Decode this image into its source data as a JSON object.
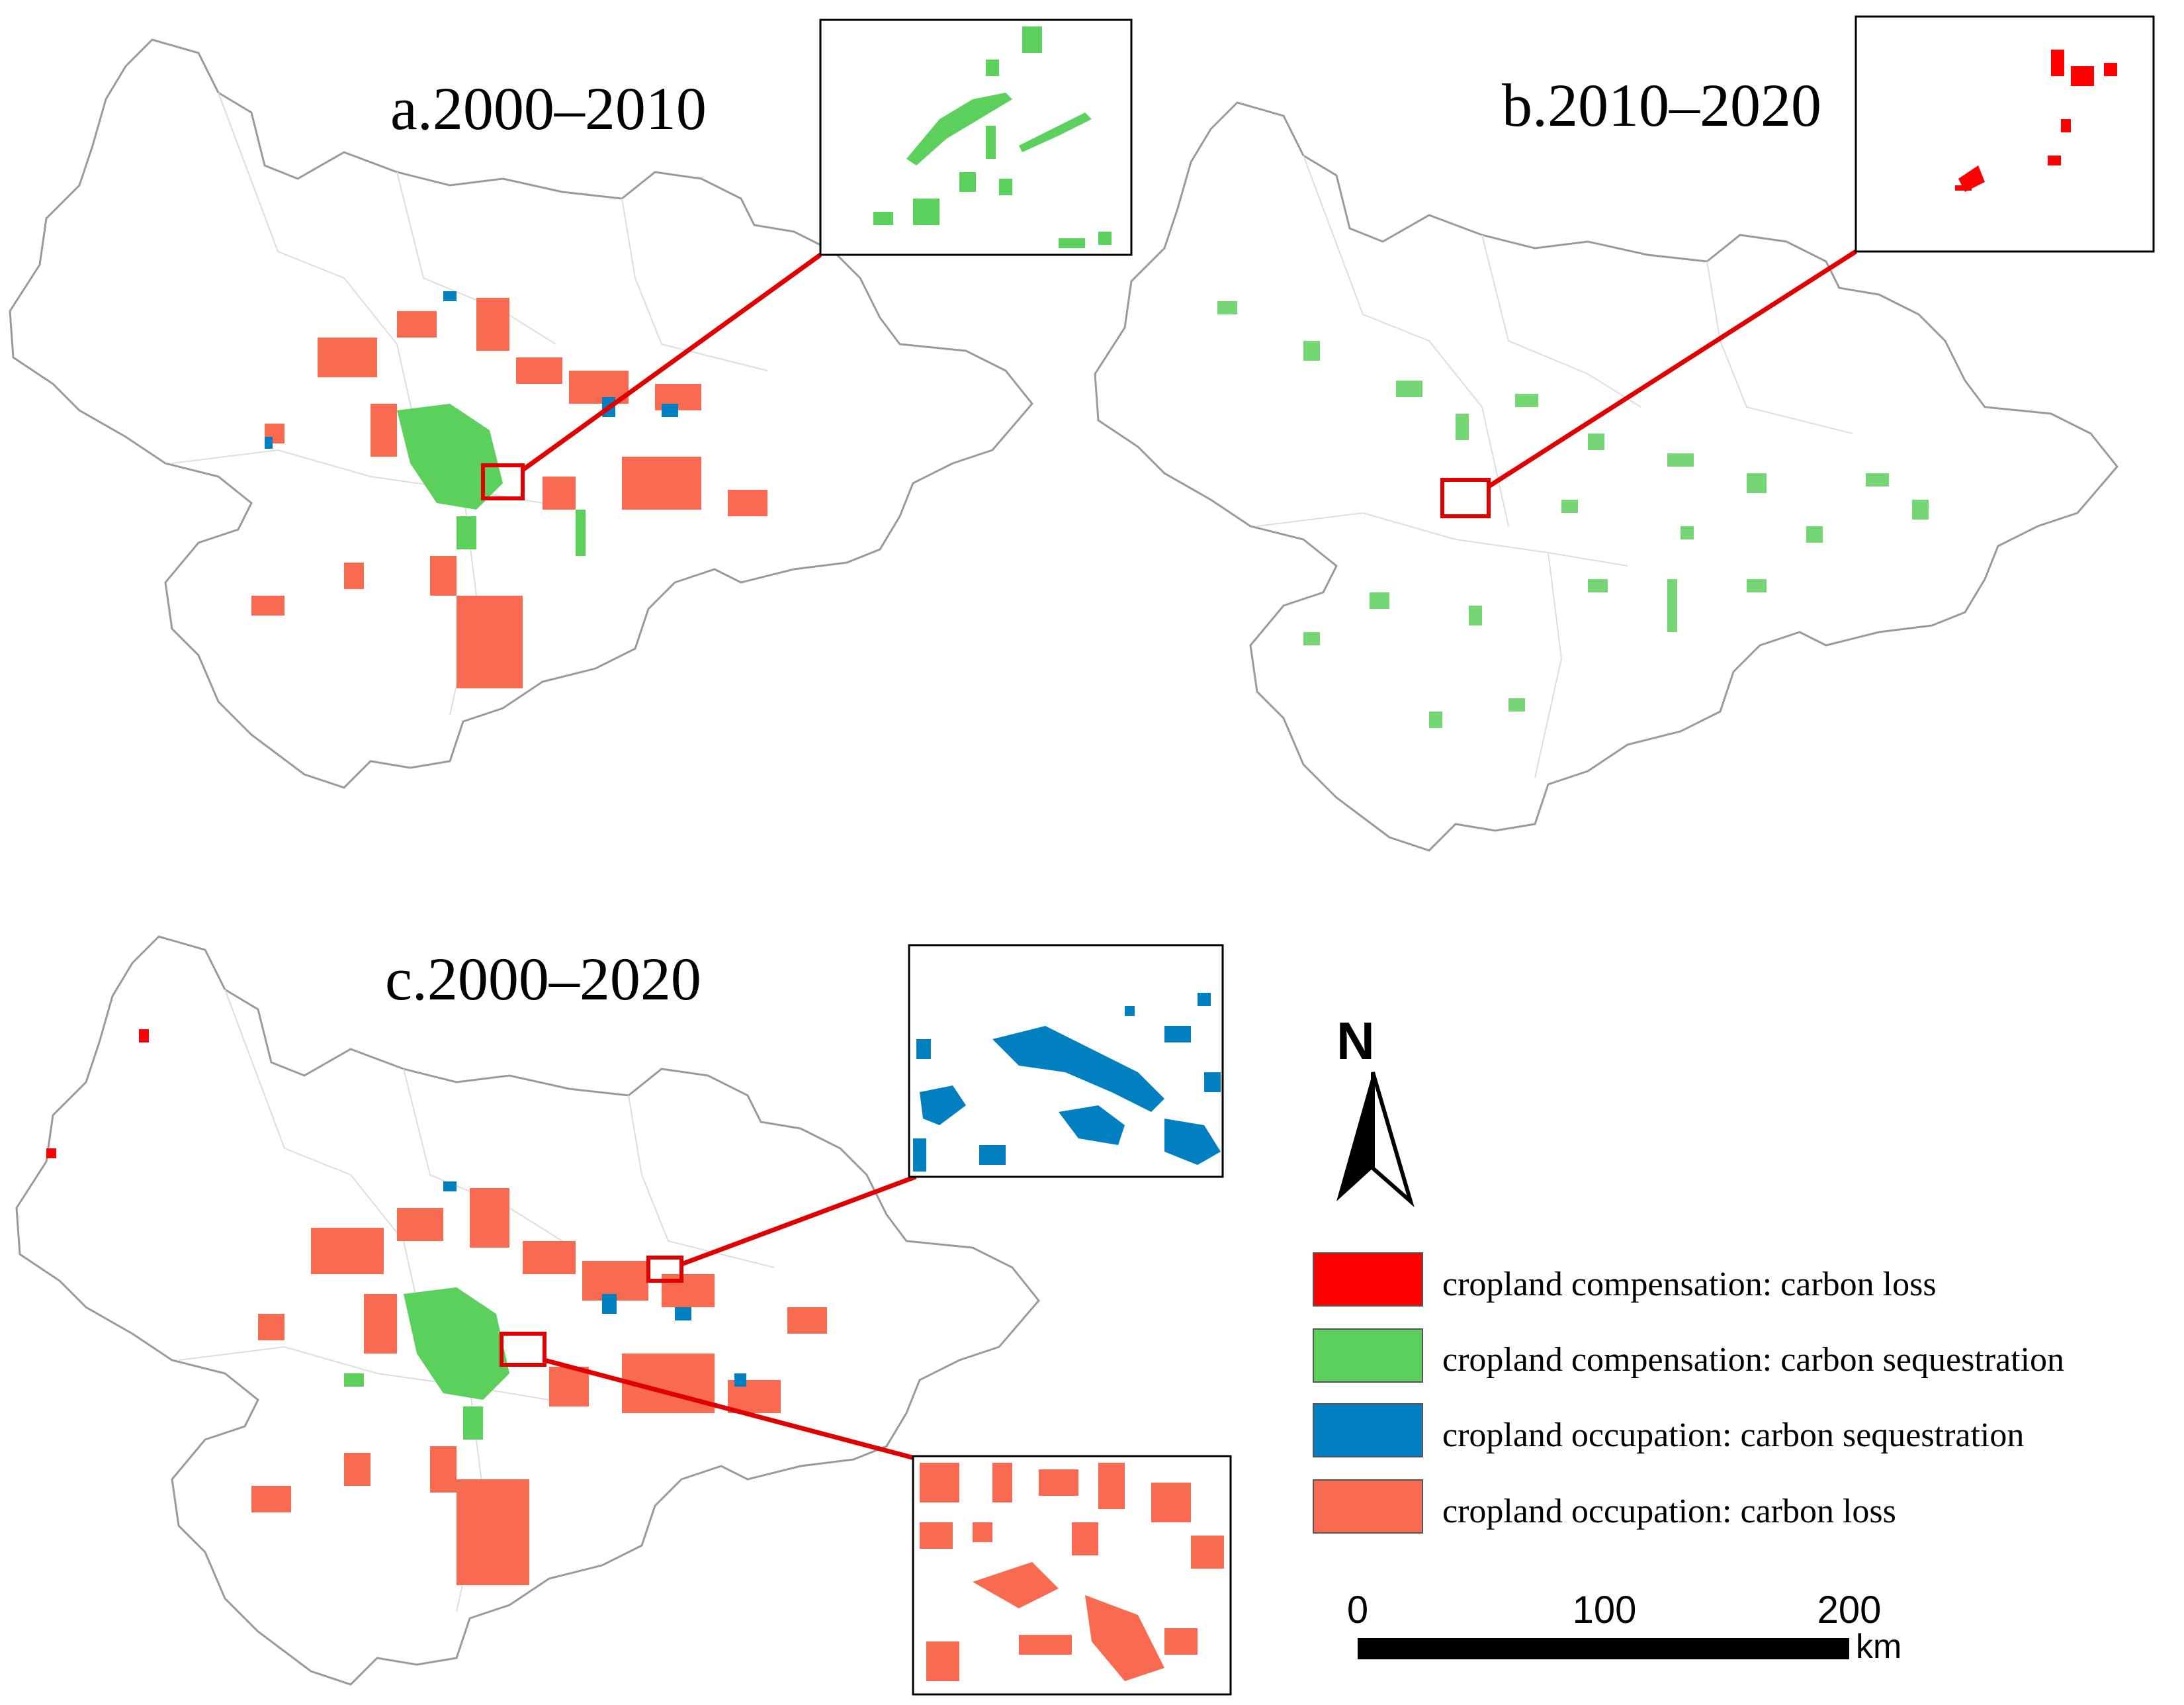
{
  "panels": {
    "a": {
      "title": "a.2000–2010"
    },
    "b": {
      "title": "b.2010–2020"
    },
    "c": {
      "title": "c.2000–2020"
    }
  },
  "legend": {
    "items": [
      {
        "label": "cropland compensation: carbon loss",
        "color": "#ff0000"
      },
      {
        "label": "cropland compensation: carbon sequestration",
        "color": "#5cd05c"
      },
      {
        "label": "cropland occupation: carbon sequestration",
        "color": "#0080c0"
      },
      {
        "label": "cropland occupation: carbon loss",
        "color": "#f86b50"
      }
    ]
  },
  "north_arrow": {
    "label": "N"
  },
  "scale_bar": {
    "ticks": [
      "0",
      "100",
      "200"
    ],
    "unit": "km"
  },
  "colors": {
    "boundary": "#9a9a9a",
    "interior": "#d8d8d8",
    "highlight_box": "#e00000",
    "compensation_loss": "#ff0000",
    "compensation_sequestration": "#5cd05c",
    "occupation_sequestration": "#0080c0",
    "occupation_loss": "#f86b50"
  }
}
